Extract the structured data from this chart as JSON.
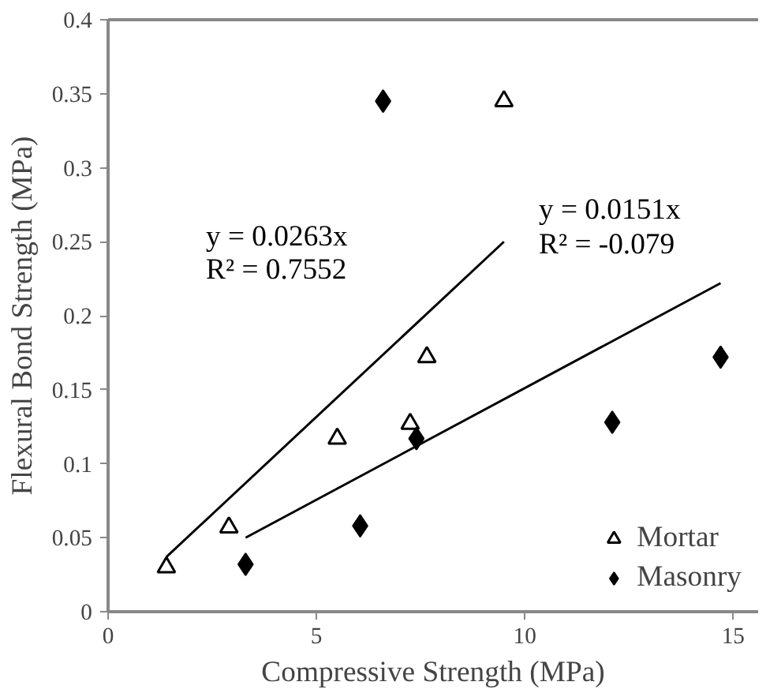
{
  "chart_data": {
    "type": "scatter",
    "xlabel": "Compressive Strength (MPa)",
    "ylabel": "Flexural Bond Strength (MPa)",
    "xlim": [
      0,
      15.6
    ],
    "xticks": [
      0,
      5,
      10,
      15
    ],
    "ylim": [
      0,
      0.4
    ],
    "yticks": [
      0,
      0.05,
      0.1,
      0.15,
      0.2,
      0.25,
      0.3,
      0.35,
      0.4
    ],
    "grid": false,
    "legend": "bottom right",
    "series": [
      {
        "name": "Mortar",
        "color": "#000000",
        "marker": "triangle",
        "x": [
          1.4,
          2.9,
          5.5,
          7.25,
          7.65,
          9.5
        ],
        "values": [
          0.03,
          0.057,
          0.117,
          0.127,
          0.172,
          0.345
        ]
      },
      {
        "name": "Masonry",
        "color": "#000000",
        "marker": "diamond",
        "x": [
          3.3,
          6.05,
          6.6,
          7.4,
          12.1,
          14.7
        ],
        "values": [
          0.032,
          0.058,
          0.345,
          0.117,
          0.128,
          0.172
        ]
      },
      {
        "type": "line",
        "color": "#000000",
        "x": [
          1.4,
          9.5
        ],
        "values": [
          0.037,
          0.25
        ]
      },
      {
        "type": "line",
        "color": "#000000",
        "x": [
          3.3,
          14.7
        ],
        "values": [
          0.05,
          0.222
        ]
      }
    ],
    "annotations": [
      "y = 0.0263x",
      "R² = 0.7552",
      "y = 0.0151x",
      "R² = -0.079"
    ]
  }
}
